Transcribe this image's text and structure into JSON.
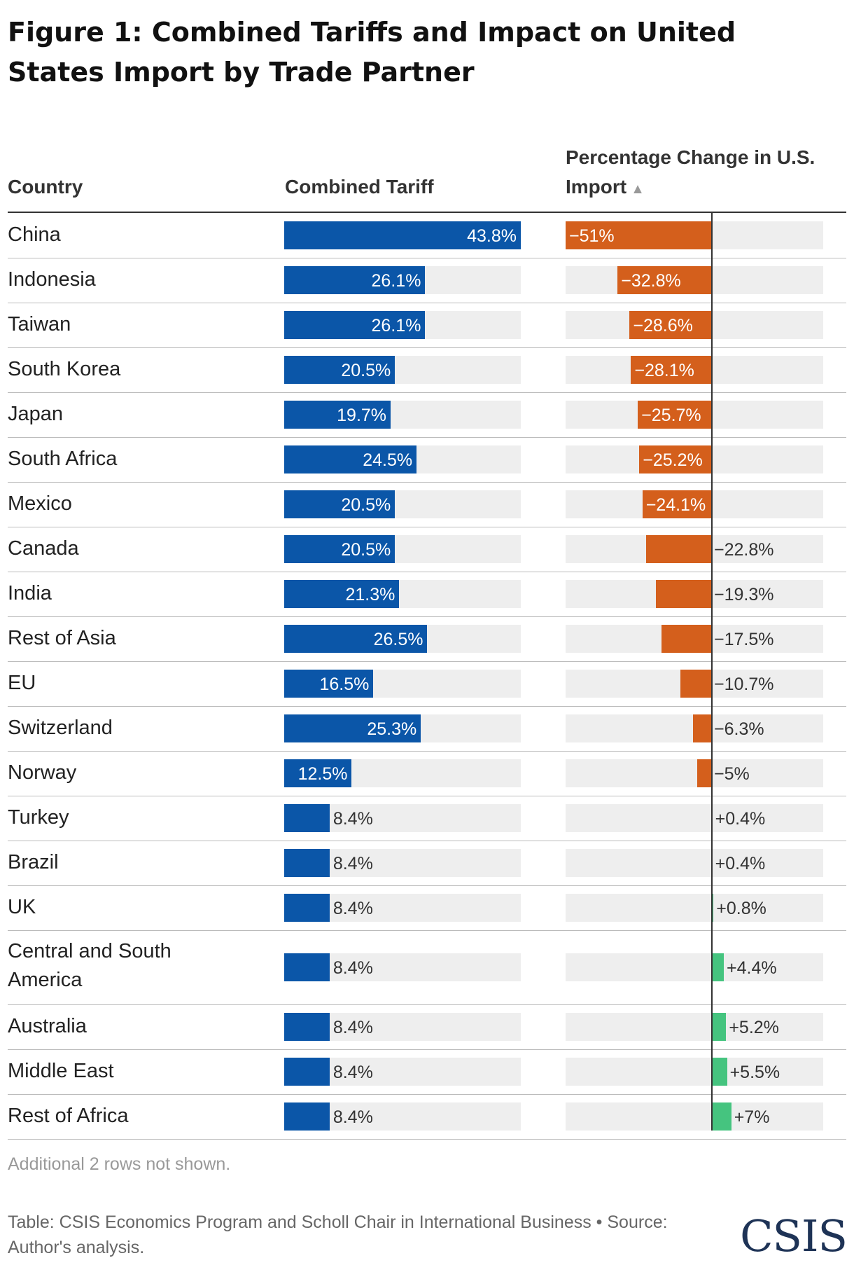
{
  "title": "Figure 1: Combined Tariffs and Impact on United States Import by Trade Partner",
  "headers": {
    "country": "Country",
    "tariff": "Combined Tariff",
    "change": "Percentage Change in U.S. Import",
    "sort_icon": "sort-up-triangle-icon"
  },
  "colors": {
    "tariff_bar": "#0b56a8",
    "negative_bar": "#d45f1c",
    "positive_bar": "#45c47f",
    "track": "#eeeeee"
  },
  "chart_data": {
    "type": "table",
    "tariff_range": [
      0,
      43.8
    ],
    "change_range": [
      -51,
      39
    ],
    "rows": [
      {
        "country": "China",
        "tariff": 43.8,
        "tariff_label": "43.8%",
        "change": -51,
        "change_label": "−51%"
      },
      {
        "country": "Indonesia",
        "tariff": 26.1,
        "tariff_label": "26.1%",
        "change": -32.8,
        "change_label": "−32.8%"
      },
      {
        "country": "Taiwan",
        "tariff": 26.1,
        "tariff_label": "26.1%",
        "change": -28.6,
        "change_label": "−28.6%"
      },
      {
        "country": "South Korea",
        "tariff": 20.5,
        "tariff_label": "20.5%",
        "change": -28.1,
        "change_label": "−28.1%"
      },
      {
        "country": "Japan",
        "tariff": 19.7,
        "tariff_label": "19.7%",
        "change": -25.7,
        "change_label": "−25.7%"
      },
      {
        "country": "South Africa",
        "tariff": 24.5,
        "tariff_label": "24.5%",
        "change": -25.2,
        "change_label": "−25.2%"
      },
      {
        "country": "Mexico",
        "tariff": 20.5,
        "tariff_label": "20.5%",
        "change": -24.1,
        "change_label": "−24.1%"
      },
      {
        "country": "Canada",
        "tariff": 20.5,
        "tariff_label": "20.5%",
        "change": -22.8,
        "change_label": "−22.8%"
      },
      {
        "country": "India",
        "tariff": 21.3,
        "tariff_label": "21.3%",
        "change": -19.3,
        "change_label": "−19.3%"
      },
      {
        "country": "Rest of Asia",
        "tariff": 26.5,
        "tariff_label": "26.5%",
        "change": -17.5,
        "change_label": "−17.5%"
      },
      {
        "country": "EU",
        "tariff": 16.5,
        "tariff_label": "16.5%",
        "change": -10.7,
        "change_label": "−10.7%"
      },
      {
        "country": "Switzerland",
        "tariff": 25.3,
        "tariff_label": "25.3%",
        "change": -6.3,
        "change_label": "−6.3%"
      },
      {
        "country": "Norway",
        "tariff": 12.5,
        "tariff_label": "12.5%",
        "change": -5,
        "change_label": "−5%"
      },
      {
        "country": "Turkey",
        "tariff": 8.4,
        "tariff_label": "8.4%",
        "change": 0.4,
        "change_label": "+0.4%"
      },
      {
        "country": "Brazil",
        "tariff": 8.4,
        "tariff_label": "8.4%",
        "change": 0.4,
        "change_label": "+0.4%"
      },
      {
        "country": "UK",
        "tariff": 8.4,
        "tariff_label": "8.4%",
        "change": 0.8,
        "change_label": "+0.8%"
      },
      {
        "country": "Central and South America",
        "tariff": 8.4,
        "tariff_label": "8.4%",
        "change": 4.4,
        "change_label": "+4.4%"
      },
      {
        "country": "Australia",
        "tariff": 8.4,
        "tariff_label": "8.4%",
        "change": 5.2,
        "change_label": "+5.2%"
      },
      {
        "country": "Middle East",
        "tariff": 8.4,
        "tariff_label": "8.4%",
        "change": 5.5,
        "change_label": "+5.5%"
      },
      {
        "country": "Rest of Africa",
        "tariff": 8.4,
        "tariff_label": "8.4%",
        "change": 7,
        "change_label": "+7%"
      }
    ]
  },
  "footnote": "Additional 2 rows not shown.",
  "source": "Table: CSIS Economics Program and Scholl Chair in International Business • Source: Author's analysis.",
  "logo": "CSIS"
}
